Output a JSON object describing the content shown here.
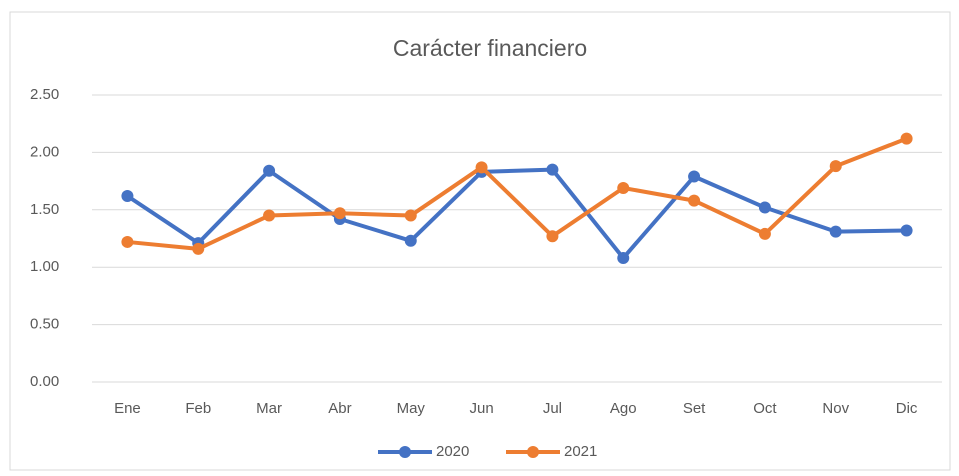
{
  "chart_data": {
    "type": "line",
    "title": "Carácter financiero",
    "categories": [
      "Ene",
      "Feb",
      "Mar",
      "Abr",
      "May",
      "Jun",
      "Jul",
      "Ago",
      "Set",
      "Oct",
      "Nov",
      "Dic"
    ],
    "series": [
      {
        "name": "2020",
        "color": "#4472c4",
        "values": [
          1.62,
          1.21,
          1.84,
          1.42,
          1.23,
          1.83,
          1.85,
          1.08,
          1.79,
          1.52,
          1.31,
          1.32
        ]
      },
      {
        "name": "2021",
        "color": "#ed7d31",
        "values": [
          1.22,
          1.16,
          1.45,
          1.47,
          1.45,
          1.87,
          1.27,
          1.69,
          1.58,
          1.29,
          1.88,
          2.12
        ]
      }
    ],
    "ylim": [
      0,
      2.5
    ],
    "yticks": [
      {
        "value": 0,
        "label": "0.00"
      },
      {
        "value": 0.5,
        "label": "0.50"
      },
      {
        "value": 1,
        "label": "1.00"
      },
      {
        "value": 1.5,
        "label": "1.50"
      },
      {
        "value": 2,
        "label": "2.00"
      },
      {
        "value": 2.5,
        "label": "2.50"
      }
    ],
    "grid": true,
    "legend": "bottom"
  }
}
